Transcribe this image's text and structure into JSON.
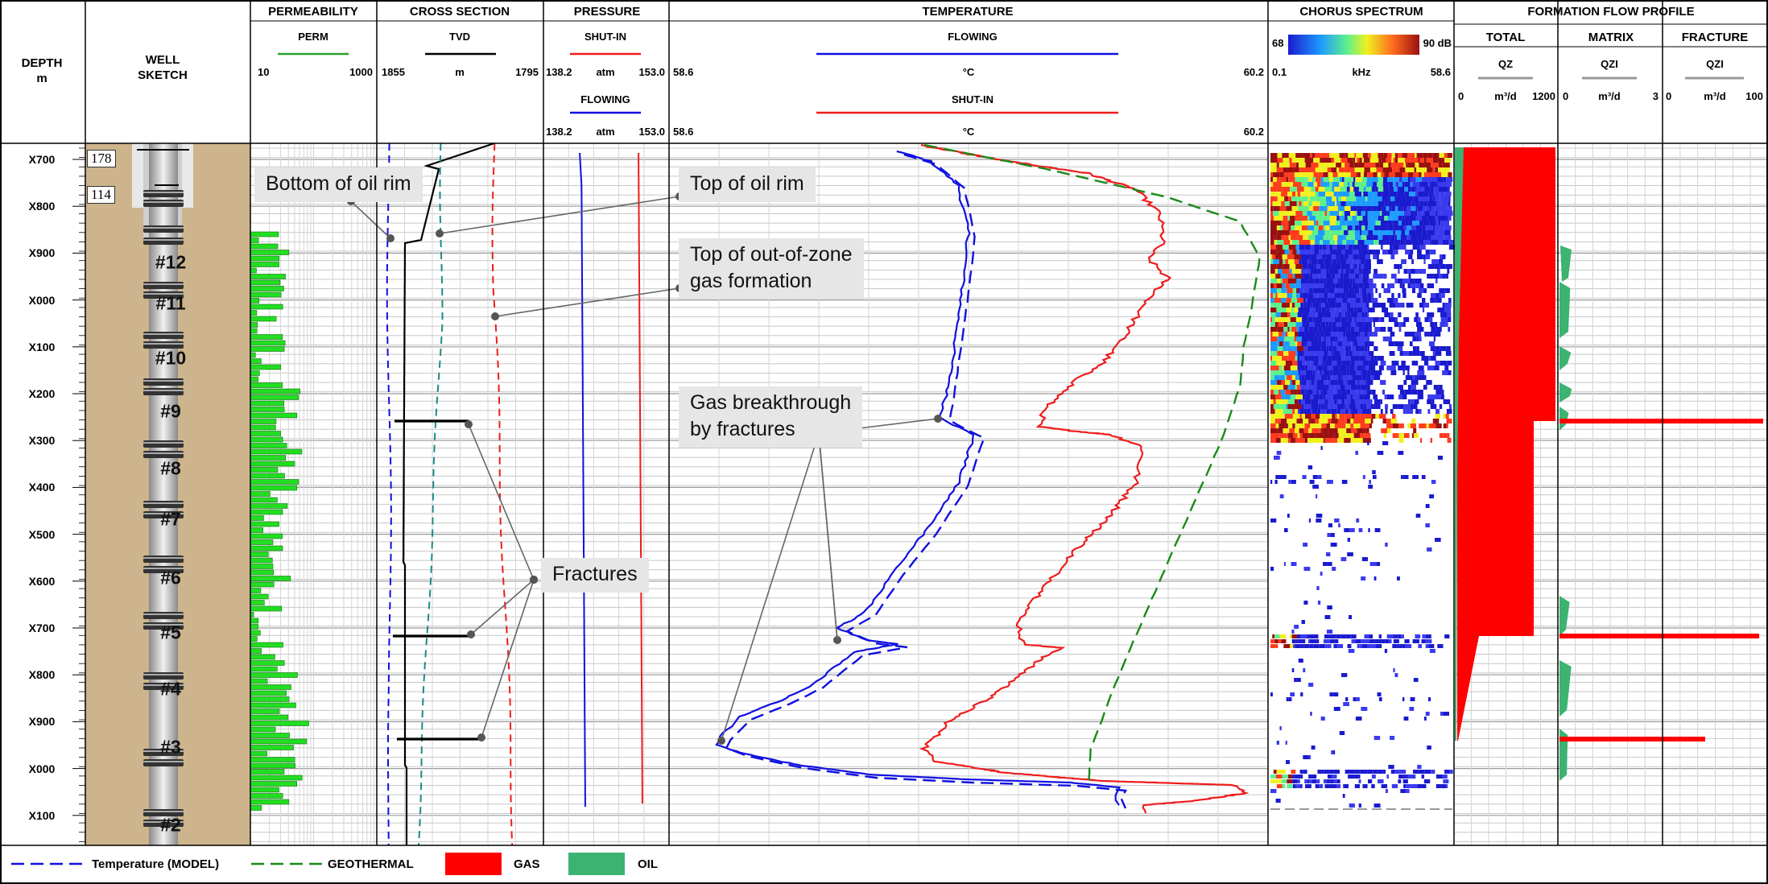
{
  "tracks": {
    "depth": {
      "title_line1": "DEPTH",
      "title_line2": "m"
    },
    "well": {
      "title_line1": "WELL",
      "title_line2": "SKETCH"
    },
    "permeability": {
      "title": "PERMEABILITY",
      "curve": "PERM",
      "min": "10",
      "max": "1000",
      "color": "#2ca02c"
    },
    "cross_section": {
      "title": "CROSS SECTION",
      "curve": "TVD",
      "min": "1855",
      "unit": "m",
      "max": "1795"
    },
    "pressure": {
      "title": "PRESSURE",
      "curve1": "SHUT-IN",
      "min1": "138.2",
      "unit1": "atm",
      "max1": "153.0",
      "curve2": "FLOWING",
      "min2": "138.2",
      "unit2": "atm",
      "max2": "153.0"
    },
    "temperature": {
      "title": "TEMPERATURE",
      "curve1": "FLOWING",
      "min1": "58.6",
      "unit1": "°C",
      "max1": "60.2",
      "curve2": "SHUT-IN",
      "min2": "58.6",
      "unit2": "°C",
      "max2": "60.2"
    },
    "chorus": {
      "title": "CHORUS SPECTRUM",
      "db_min": "68",
      "db_max": "90 dB",
      "min": "0.1",
      "unit": "kHz",
      "max": "58.6"
    },
    "flow": {
      "title": "FORMATION FLOW PROFILE",
      "total": {
        "title": "TOTAL",
        "curve": "QZ",
        "min": "0",
        "unit": "m³/d",
        "max": "1200"
      },
      "matrix": {
        "title": "MATRIX",
        "curve": "QZI",
        "min": "0",
        "unit": "m³/d",
        "max": "3"
      },
      "fracture": {
        "title": "FRACTURE",
        "curve": "QZI",
        "min": "0",
        "unit": "m³/d",
        "max": "100"
      }
    }
  },
  "depth_labels": [
    "X700",
    "X800",
    "X900",
    "X000",
    "X100",
    "X200",
    "X300",
    "X400",
    "X500",
    "X600",
    "X700",
    "X800",
    "X900",
    "X000",
    "X100"
  ],
  "casing_labels": [
    "178",
    "114"
  ],
  "stages": [
    "#12",
    "#11",
    "#10",
    "#9",
    "#8",
    "#7",
    "#6",
    "#5",
    "#4",
    "#3",
    "#2"
  ],
  "annotations": {
    "bottom_oil_rim": "Bottom of oil rim",
    "top_oil_rim": "Top of oil rim",
    "gas_formation_l1": "Top of out-of-zone",
    "gas_formation_l2": "gas formation",
    "gas_breakthrough_l1": "Gas breakthrough",
    "gas_breakthrough_l2": "by fractures",
    "fractures": "Fractures"
  },
  "legend": {
    "model": "Temperature (MODEL)",
    "geothermal": "GEOTHERMAL",
    "gas": "GAS",
    "oil": "OIL"
  },
  "colors": {
    "flowing": "#1010e0",
    "shutin": "#ee1c1c",
    "geothermal": "#1a8a1a",
    "gas": "#ff0000",
    "oil": "#3cb371",
    "perm": "#22dd22",
    "sand": "#cdb48c",
    "teal": "#1a8a8a"
  }
}
